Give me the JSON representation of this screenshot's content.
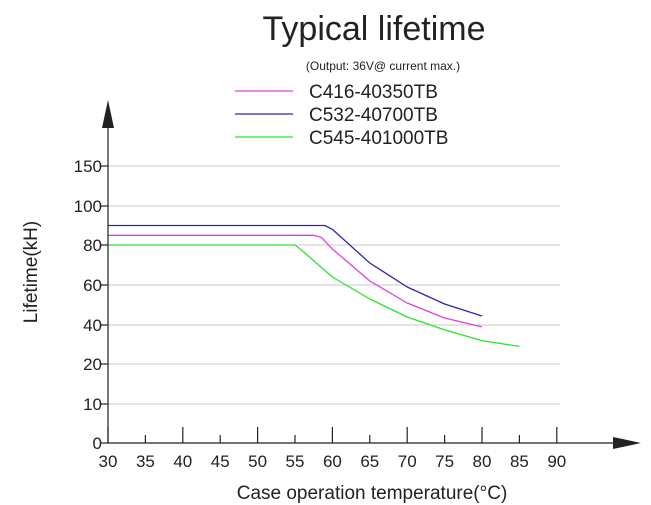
{
  "chart_data": {
    "type": "line",
    "title": "Typical lifetime",
    "subtitle": "(Output: 36V@ current max.)",
    "xlabel": "Case operation temperature(°C)",
    "ylabel": "Lifetime(kH)",
    "x_ticks": [
      "30",
      "35",
      "40",
      "45",
      "50",
      "55",
      "60",
      "65",
      "70",
      "75",
      "80",
      "85",
      "90"
    ],
    "y_ticks": [
      "0",
      "10",
      "20",
      "40",
      "60",
      "80",
      "100",
      "150"
    ],
    "grid": true,
    "legend_position": "top",
    "series": [
      {
        "name": "C416-40350TB",
        "color": "#e040e0",
        "points": [
          [
            30,
            85
          ],
          [
            57.5,
            85
          ],
          [
            58.5,
            84
          ],
          [
            60,
            78
          ],
          [
            65,
            62
          ],
          [
            70,
            51
          ],
          [
            75,
            43.5
          ],
          [
            80,
            39
          ]
        ]
      },
      {
        "name": "C532-40700TB",
        "color": "#2a2aa8",
        "points": [
          [
            30,
            90
          ],
          [
            59,
            90
          ],
          [
            60,
            88
          ],
          [
            65,
            71
          ],
          [
            70,
            59
          ],
          [
            75,
            50.5
          ],
          [
            80,
            44.5
          ]
        ]
      },
      {
        "name": "C545-401000TB",
        "color": "#2ee22e",
        "points": [
          [
            30,
            80
          ],
          [
            55,
            80
          ],
          [
            56,
            77
          ],
          [
            60,
            64
          ],
          [
            65,
            53
          ],
          [
            70,
            44
          ],
          [
            75,
            37.5
          ],
          [
            80,
            32
          ],
          [
            85,
            29
          ]
        ]
      }
    ]
  }
}
